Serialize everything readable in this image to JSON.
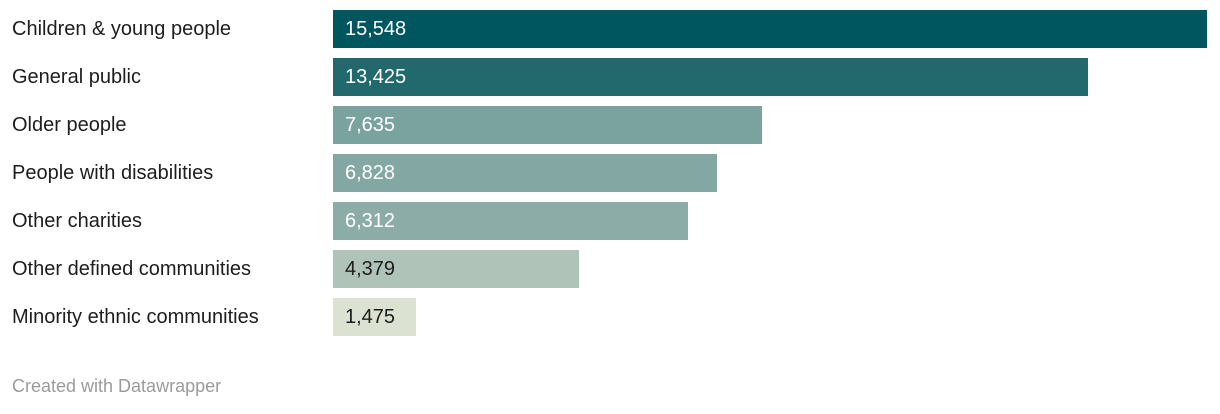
{
  "chart_data": {
    "type": "bar",
    "orientation": "horizontal",
    "title": "",
    "xlabel": "",
    "ylabel": "",
    "xlim": [
      0,
      15548
    ],
    "grid": false,
    "legend": false,
    "categories": [
      "Children & young people",
      "General public",
      "Older people",
      "People with disabilities",
      "Other charities",
      "Other defined communities",
      "Minority ethnic communities"
    ],
    "values": [
      15548,
      13425,
      7635,
      6828,
      6312,
      4379,
      1475
    ],
    "value_labels": [
      "15,548",
      "13,425",
      "7,635",
      "6,828",
      "6,312",
      "4,379",
      "1,475"
    ],
    "bar_colors": [
      "#00565e",
      "#21696d",
      "#7aa3a0",
      "#83a8a3",
      "#8cada7",
      "#afc3b9",
      "#dce2d1"
    ],
    "value_label_colors": [
      "#ffffff",
      "#ffffff",
      "#ffffff",
      "#ffffff",
      "#ffffff",
      "#1d1d1d",
      "#1d1d1d"
    ],
    "value_label_position": "inside-start"
  },
  "footer": {
    "attribution": "Created with Datawrapper"
  },
  "colors": {
    "background": "#ffffff",
    "category_label": "#1d1d1d",
    "attribution": "#9b9b9b"
  }
}
